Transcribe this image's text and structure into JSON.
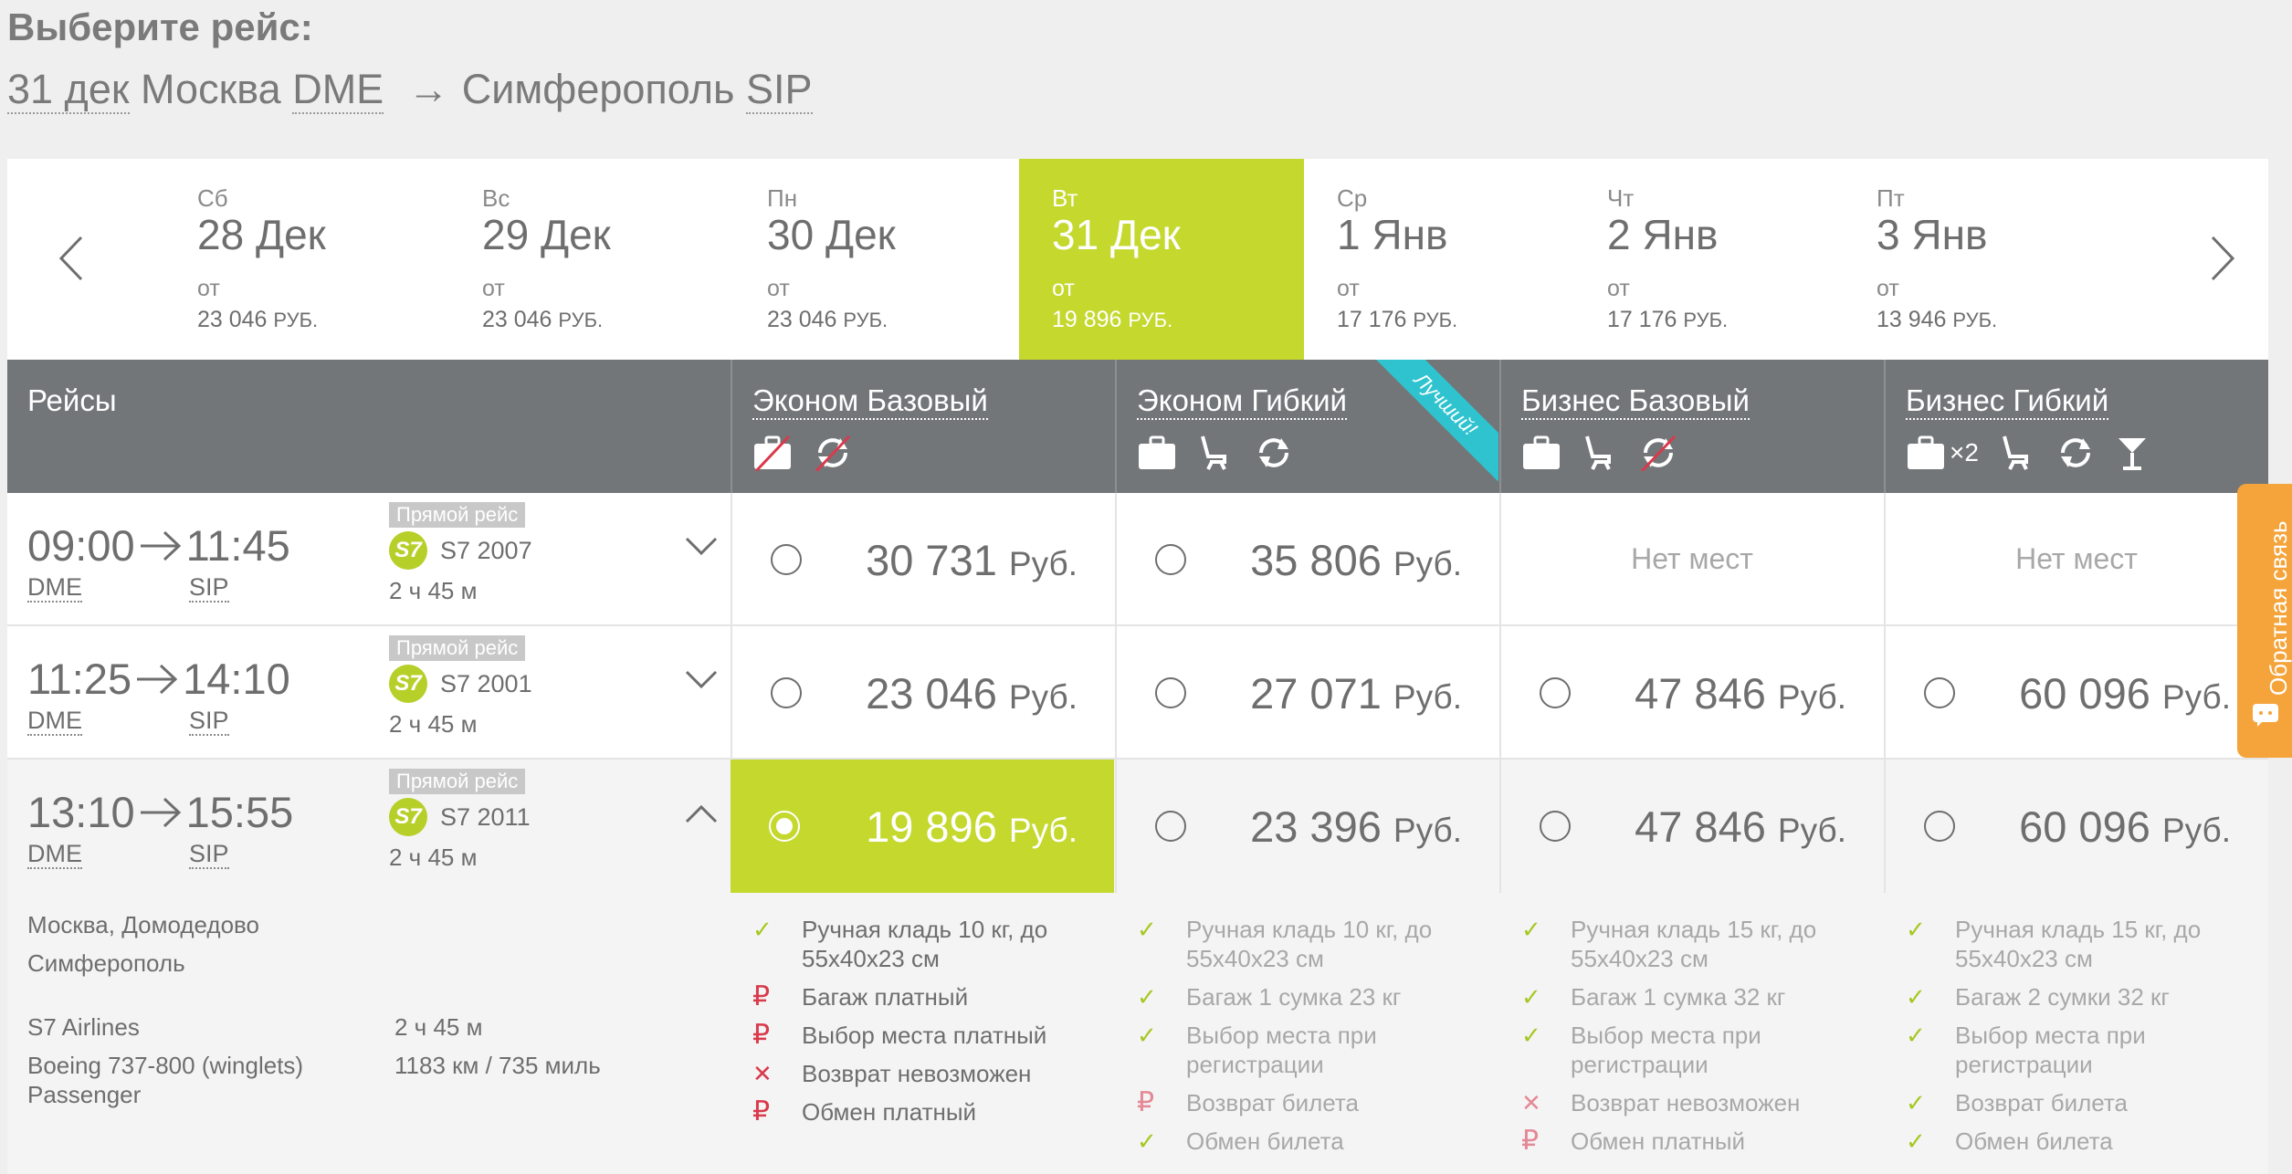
{
  "heading": "Выберите рейс:",
  "route": {
    "date": "31 дек",
    "from_city": "Москва",
    "from_code": "DME",
    "arrow": "→",
    "to_city": "Симферополь",
    "to_code": "SIP"
  },
  "dates": [
    {
      "dow": "Сб",
      "date": "28 Дек",
      "from": "от",
      "price": "23 046",
      "currency": "РУБ."
    },
    {
      "dow": "Вс",
      "date": "29 Дек",
      "from": "от",
      "price": "23 046",
      "currency": "РУБ."
    },
    {
      "dow": "Пн",
      "date": "30 Дек",
      "from": "от",
      "price": "23 046",
      "currency": "РУБ."
    },
    {
      "dow": "Вт",
      "date": "31 Дек",
      "from": "от",
      "price": "19 896",
      "currency": "РУБ."
    },
    {
      "dow": "Ср",
      "date": "1 Янв",
      "from": "от",
      "price": "17 176",
      "currency": "РУБ."
    },
    {
      "dow": "Чт",
      "date": "2 Янв",
      "from": "от",
      "price": "17 176",
      "currency": "РУБ."
    },
    {
      "dow": "Пт",
      "date": "3 Янв",
      "from": "от",
      "price": "13 946",
      "currency": "РУБ."
    }
  ],
  "table": {
    "flights_header": "Рейсы",
    "fares": [
      {
        "name": "Эконом Базовый"
      },
      {
        "name": "Эконом Гибкий",
        "ribbon": "Лучший!"
      },
      {
        "name": "Бизнес Базовый"
      },
      {
        "name": "Бизнес Гибкий",
        "baggage_count": "×2"
      }
    ]
  },
  "flights": [
    {
      "dep": "09:00",
      "arr": "11:45",
      "dep_code": "DME",
      "arr_code": "SIP",
      "badge": "Прямой рейс",
      "logo": "S7",
      "number": "S7 2007",
      "duration": "2 ч 45 м",
      "prices": [
        {
          "amount": "30 731",
          "currency": "Руб."
        },
        {
          "amount": "35 806",
          "currency": "Руб."
        },
        {
          "none": "Нет мест"
        },
        {
          "none": "Нет мест"
        }
      ]
    },
    {
      "dep": "11:25",
      "arr": "14:10",
      "dep_code": "DME",
      "arr_code": "SIP",
      "badge": "Прямой рейс",
      "logo": "S7",
      "number": "S7 2001",
      "duration": "2 ч 45 м",
      "prices": [
        {
          "amount": "23 046",
          "currency": "Руб."
        },
        {
          "amount": "27 071",
          "currency": "Руб."
        },
        {
          "amount": "47 846",
          "currency": "Руб."
        },
        {
          "amount": "60 096",
          "currency": "Руб."
        }
      ]
    },
    {
      "dep": "13:10",
      "arr": "15:55",
      "dep_code": "DME",
      "arr_code": "SIP",
      "badge": "Прямой рейс",
      "logo": "S7",
      "number": "S7 2011",
      "duration": "2 ч 45 м",
      "prices": [
        {
          "amount": "19 896",
          "currency": "Руб."
        },
        {
          "amount": "23 396",
          "currency": "Руб."
        },
        {
          "amount": "47 846",
          "currency": "Руб."
        },
        {
          "amount": "60 096",
          "currency": "Руб."
        }
      ]
    }
  ],
  "details": {
    "dep_airport": "Москва, Домодедово",
    "arr_airport": "Симферополь",
    "airline": "S7 Airlines",
    "aircraft_1": "Boeing 737-800 (winglets)",
    "aircraft_2": "Passenger",
    "duration": "2 ч 45 м",
    "distance": "1183 км / 735 миль",
    "features": [
      [
        {
          "icon": "check",
          "text": "Ручная кладь 10 кг, до 55х40х23 см"
        },
        {
          "icon": "ruble",
          "text": "Багаж платный"
        },
        {
          "icon": "ruble",
          "text": "Выбор места платный"
        },
        {
          "icon": "cross",
          "text": "Возврат невозможен"
        },
        {
          "icon": "ruble",
          "text": "Обмен платный"
        }
      ],
      [
        {
          "icon": "check",
          "text": "Ручная кладь 10 кг, до 55х40х23 см"
        },
        {
          "icon": "check",
          "text": "Багаж 1 сумка 23 кг"
        },
        {
          "icon": "check",
          "text": "Выбор места при регистрации"
        },
        {
          "icon": "ruble",
          "text": "Возврат билета"
        },
        {
          "icon": "check",
          "text": "Обмен билета"
        }
      ],
      [
        {
          "icon": "check",
          "text": "Ручная кладь 15 кг, до 55х40х23 см"
        },
        {
          "icon": "check",
          "text": "Багаж 1 сумка 32 кг"
        },
        {
          "icon": "check",
          "text": "Выбор места при регистрации"
        },
        {
          "icon": "cross",
          "text": "Возврат невозможен"
        },
        {
          "icon": "ruble",
          "text": "Обмен платный"
        }
      ],
      [
        {
          "icon": "check",
          "text": "Ручная кладь 15 кг, до 55х40х23 см"
        },
        {
          "icon": "check",
          "text": "Багаж 2 сумки 32 кг"
        },
        {
          "icon": "check",
          "text": "Выбор места при регистрации"
        },
        {
          "icon": "check",
          "text": "Возврат билета"
        },
        {
          "icon": "check",
          "text": "Обмен билета"
        }
      ]
    ]
  },
  "feedback": "Обратная связь",
  "colors": {
    "accent": "#c4d82e",
    "header": "#727679",
    "ribbon": "#2fc3d0",
    "feedback": "#f4a43a",
    "check": "#a6c823",
    "negative": "#d93a4c"
  }
}
